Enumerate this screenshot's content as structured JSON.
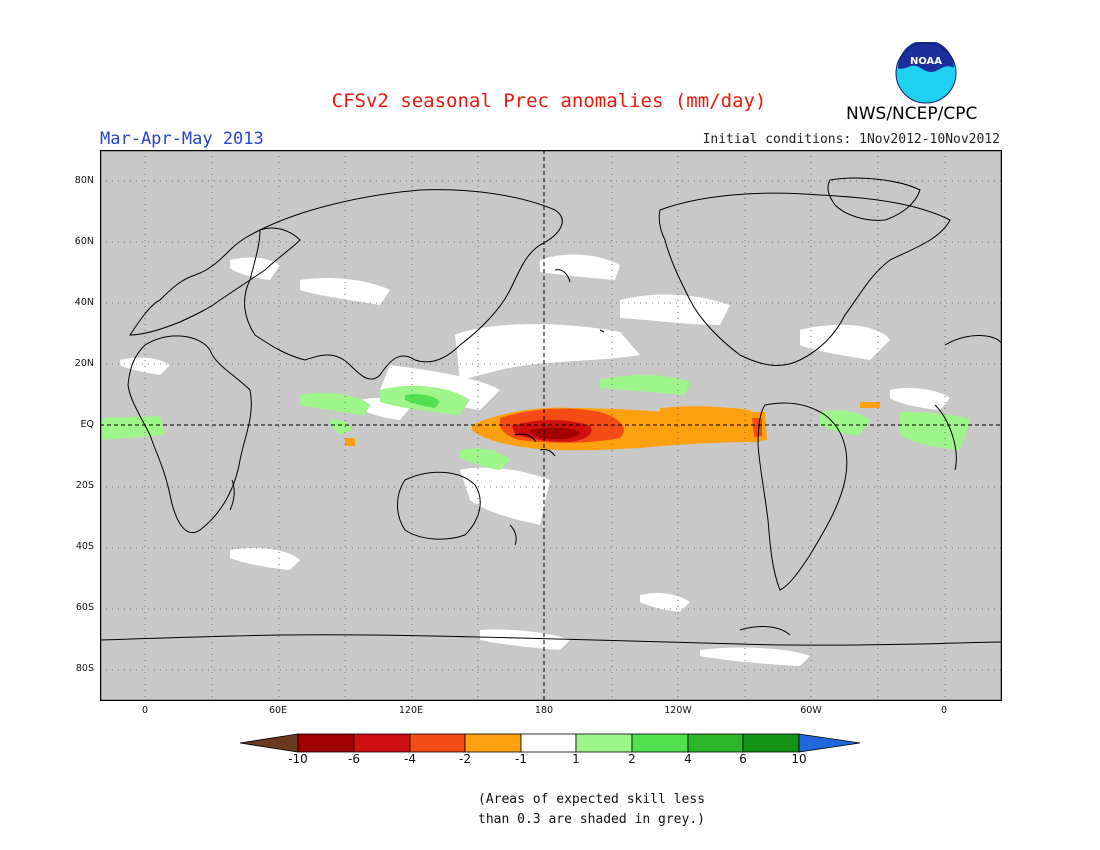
{
  "header": {
    "title": "CFSv2 seasonal Prec anomalies (mm/day)",
    "period": "Mar-Apr-May 2013",
    "initial_conditions": "Initial conditions: 1Nov2012-10Nov2012",
    "agency": "NWS/NCEP/CPC",
    "logo_text": "NOAA"
  },
  "map": {
    "projection": "equirectangular",
    "lon_range": [
      -20,
      380
    ],
    "lat_range": [
      -90,
      90
    ],
    "gridlines": "dotted",
    "reference_lines": [
      "equator",
      "180"
    ],
    "lat_labels": [
      "80N",
      "60N",
      "40N",
      "20N",
      "EQ",
      "20S",
      "40S",
      "60S",
      "80S"
    ],
    "lon_labels": [
      "0",
      "60E",
      "120E",
      "180",
      "120W",
      "60W",
      "0"
    ],
    "skill_mask_color": "#c8c8c8"
  },
  "legend": {
    "tick_labels": [
      "-10",
      "-6",
      "-4",
      "-2",
      "-1",
      "1",
      "2",
      "4",
      "6",
      "10"
    ],
    "colors": [
      "#6b3a1e",
      "#a20000",
      "#d01010",
      "#f54b14",
      "#fca010",
      "#ffffff",
      "#9ef58a",
      "#50e050",
      "#2bb52b",
      "#139313",
      "#2266dd"
    ]
  },
  "footnote": {
    "line1": "(Areas of expected skill less",
    "line2": "than 0.3 are shaded in grey.)"
  }
}
